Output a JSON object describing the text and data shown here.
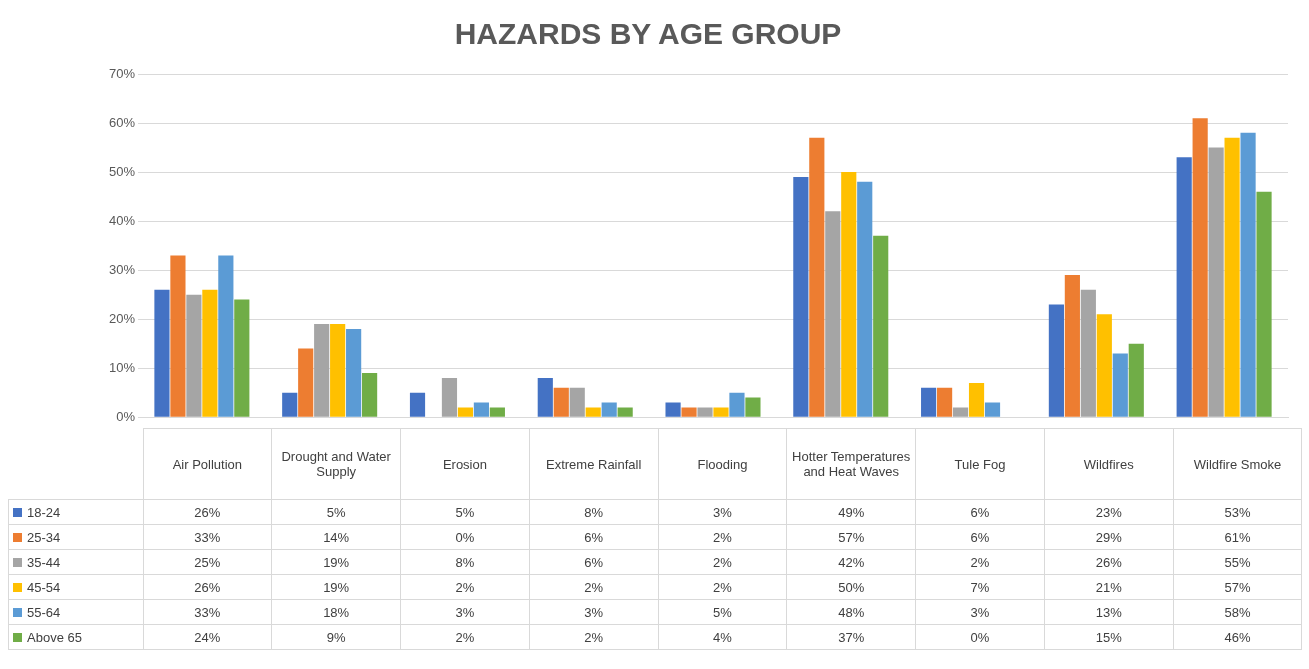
{
  "chart_data": {
    "type": "bar",
    "title": "HAZARDS BY AGE GROUP",
    "categories": [
      "Air Pollution",
      "Drought and Water Supply",
      "Erosion",
      "Extreme Rainfall",
      "Flooding",
      "Hotter Temperatures and Heat Waves",
      "Tule Fog",
      "Wildfires",
      "Wildfire Smoke"
    ],
    "series": [
      {
        "name": "18-24",
        "color": "#4472c4",
        "values": [
          26,
          5,
          5,
          8,
          3,
          49,
          6,
          23,
          53
        ],
        "value_labels": [
          "26%",
          "5%",
          "5%",
          "8%",
          "3%",
          "49%",
          "6%",
          "23%",
          "53%"
        ]
      },
      {
        "name": "25-34",
        "color": "#ed7d31",
        "values": [
          33,
          14,
          0,
          6,
          2,
          57,
          6,
          29,
          61
        ],
        "value_labels": [
          "33%",
          "14%",
          "0%",
          "6%",
          "2%",
          "57%",
          "6%",
          "29%",
          "61%"
        ]
      },
      {
        "name": "35-44",
        "color": "#a5a5a5",
        "values": [
          25,
          19,
          8,
          6,
          2,
          42,
          2,
          26,
          55
        ],
        "value_labels": [
          "25%",
          "19%",
          "8%",
          "6%",
          "2%",
          "42%",
          "2%",
          "26%",
          "55%"
        ]
      },
      {
        "name": "45-54",
        "color": "#ffc000",
        "values": [
          26,
          19,
          2,
          2,
          2,
          50,
          7,
          21,
          57
        ],
        "value_labels": [
          "26%",
          "19%",
          "2%",
          "2%",
          "2%",
          "50%",
          "7%",
          "21%",
          "57%"
        ]
      },
      {
        "name": "55-64",
        "color": "#5b9bd5",
        "values": [
          33,
          18,
          3,
          3,
          5,
          48,
          3,
          13,
          58
        ],
        "value_labels": [
          "33%",
          "18%",
          "3%",
          "3%",
          "5%",
          "48%",
          "3%",
          "13%",
          "58%"
        ]
      },
      {
        "name": "Above 65",
        "color": "#70ad47",
        "values": [
          24,
          9,
          2,
          2,
          4,
          37,
          0,
          15,
          46
        ],
        "value_labels": [
          "24%",
          "9%",
          "2%",
          "2%",
          "4%",
          "37%",
          "0%",
          "15%",
          "46%"
        ]
      }
    ],
    "ylim": [
      0,
      70
    ],
    "yticks": [
      {
        "value": 0,
        "label": "0%"
      },
      {
        "value": 10,
        "label": "10%"
      },
      {
        "value": 20,
        "label": "20%"
      },
      {
        "value": 30,
        "label": "30%"
      },
      {
        "value": 40,
        "label": "40%"
      },
      {
        "value": 50,
        "label": "50%"
      },
      {
        "value": 60,
        "label": "60%"
      },
      {
        "value": 70,
        "label": "70%"
      }
    ],
    "grid": "y",
    "legend": "bottom"
  }
}
